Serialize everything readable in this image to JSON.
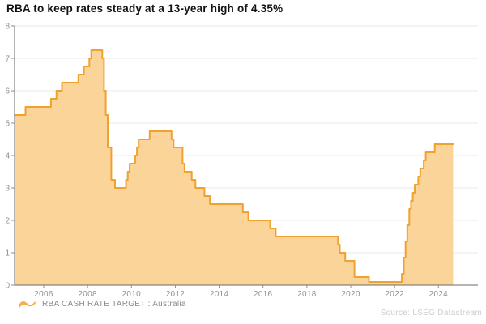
{
  "title": "RBA to keep rates steady at a 13-year high of 4.35%",
  "legend": {
    "label": "RBA CASH RATE TARGET : Australia"
  },
  "source": "Source: LSEG Datastream",
  "colors": {
    "area_fill": "#fbd49a",
    "area_line": "#efa22f",
    "swatch": "#f2b04f",
    "grid": "#e8e8e8",
    "axis": "#6b6b6b",
    "tick": "#8f8f8f",
    "tick_label": "#8f8f8f",
    "title_text": "#111111",
    "legend_text": "#8a8a8a",
    "source_text": "#cdcdcd"
  },
  "chart_data": {
    "type": "area",
    "title": "RBA to keep rates steady at a 13-year high of 4.35%",
    "series_name": "RBA CASH RATE TARGET : Australia",
    "xlabel": "",
    "ylabel": "",
    "step": true,
    "grid": "horizontal",
    "legend_position": "bottom-left",
    "x_domain": [
      2004.67,
      2025.8
    ],
    "y_domain": [
      0,
      8
    ],
    "x_ticks": [
      2006,
      2008,
      2010,
      2012,
      2014,
      2016,
      2018,
      2020,
      2022,
      2024
    ],
    "y_ticks": [
      0,
      1,
      2,
      3,
      4,
      5,
      6,
      7,
      8
    ],
    "points": [
      [
        2004.67,
        5.25
      ],
      [
        2005.17,
        5.5
      ],
      [
        2006.33,
        5.75
      ],
      [
        2006.58,
        6.0
      ],
      [
        2006.83,
        6.25
      ],
      [
        2007.58,
        6.5
      ],
      [
        2007.83,
        6.75
      ],
      [
        2008.08,
        7.0
      ],
      [
        2008.17,
        7.25
      ],
      [
        2008.67,
        7.0
      ],
      [
        2008.75,
        6.0
      ],
      [
        2008.83,
        5.25
      ],
      [
        2008.92,
        4.25
      ],
      [
        2009.08,
        3.25
      ],
      [
        2009.25,
        3.0
      ],
      [
        2009.75,
        3.25
      ],
      [
        2009.83,
        3.5
      ],
      [
        2009.92,
        3.75
      ],
      [
        2010.17,
        4.0
      ],
      [
        2010.25,
        4.25
      ],
      [
        2010.33,
        4.5
      ],
      [
        2010.83,
        4.75
      ],
      [
        2011.83,
        4.5
      ],
      [
        2011.92,
        4.25
      ],
      [
        2012.33,
        3.75
      ],
      [
        2012.42,
        3.5
      ],
      [
        2012.75,
        3.25
      ],
      [
        2012.92,
        3.0
      ],
      [
        2013.33,
        2.75
      ],
      [
        2013.58,
        2.5
      ],
      [
        2015.08,
        2.25
      ],
      [
        2015.33,
        2.0
      ],
      [
        2016.33,
        1.75
      ],
      [
        2016.58,
        1.5
      ],
      [
        2019.42,
        1.25
      ],
      [
        2019.5,
        1.0
      ],
      [
        2019.75,
        0.75
      ],
      [
        2020.17,
        0.25
      ],
      [
        2020.83,
        0.1
      ],
      [
        2022.33,
        0.35
      ],
      [
        2022.42,
        0.85
      ],
      [
        2022.5,
        1.35
      ],
      [
        2022.58,
        1.85
      ],
      [
        2022.67,
        2.35
      ],
      [
        2022.75,
        2.6
      ],
      [
        2022.83,
        2.85
      ],
      [
        2022.92,
        3.1
      ],
      [
        2023.08,
        3.35
      ],
      [
        2023.17,
        3.6
      ],
      [
        2023.33,
        3.85
      ],
      [
        2023.42,
        4.1
      ],
      [
        2023.83,
        4.35
      ],
      [
        2024.67,
        4.35
      ]
    ]
  }
}
